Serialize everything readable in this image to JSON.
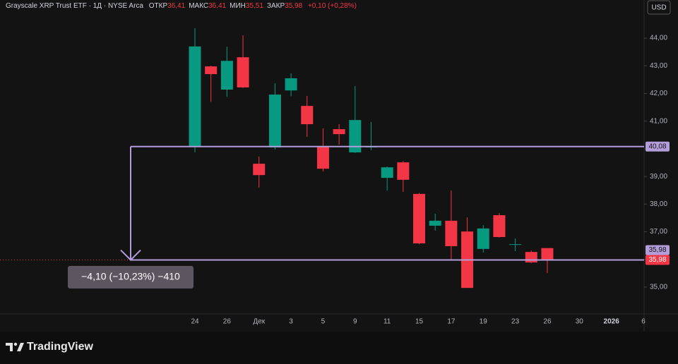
{
  "chart_data": {
    "type": "candlestick",
    "title": "Grayscale XRP Trust ETF · 1Д · NYSE Arca",
    "ohlc_legend": [
      {
        "name": "ОТКР",
        "value": "36,41"
      },
      {
        "name": "МАКС",
        "value": "36,41"
      },
      {
        "name": "МИН",
        "value": "35,51"
      },
      {
        "name": "ЗАКР",
        "value": "35,98"
      }
    ],
    "change": "+0,10 (+0,28%)",
    "currency": "USD",
    "categories": [
      "24",
      null,
      "26",
      null,
      "Дек",
      null,
      "3",
      null,
      "5",
      null,
      "9",
      null,
      "11",
      null,
      "15",
      null,
      "17",
      null,
      "19",
      null,
      "23",
      null,
      "26",
      null,
      "30",
      null,
      "2026",
      null,
      "6"
    ],
    "open": [
      40.08,
      42.98,
      42.14,
      43.31,
      39.46,
      40.05,
      42.11,
      41.55,
      40.1,
      40.71,
      39.87,
      40.05,
      38.95,
      39.51,
      38.37,
      37.22,
      37.4,
      37.01,
      36.38,
      37.6,
      36.53,
      36.27,
      36.41,
      null,
      null,
      null,
      null,
      null,
      null
    ],
    "high": [
      44.36,
      43.0,
      43.69,
      44.1,
      39.72,
      42.37,
      42.73,
      41.91,
      40.74,
      40.89,
      42.27,
      40.97,
      39.36,
      39.56,
      38.4,
      37.65,
      38.49,
      37.52,
      37.24,
      37.68,
      36.76,
      36.32,
      36.41,
      null,
      null,
      null,
      null,
      null,
      null
    ],
    "low": [
      39.87,
      41.7,
      41.88,
      42.2,
      38.6,
      39.97,
      41.9,
      40.43,
      39.18,
      40.15,
      39.85,
      39.95,
      38.49,
      38.44,
      36.55,
      37.04,
      35.99,
      34.97,
      36.25,
      36.79,
      36.3,
      35.87,
      35.51,
      null,
      null,
      null,
      null,
      null,
      null
    ],
    "close": [
      43.7,
      42.7,
      43.18,
      42.22,
      39.05,
      41.96,
      42.55,
      40.89,
      39.28,
      40.53,
      41.04,
      40.08,
      39.33,
      38.88,
      36.58,
      37.4,
      36.48,
      34.97,
      37.12,
      36.81,
      36.55,
      35.89,
      35.98,
      null,
      null,
      null,
      null,
      null,
      null
    ],
    "up_color": "#089981",
    "down_color": "#f23645",
    "ylim": [
      34.03,
      45.38
    ],
    "yticks": [
      {
        "value": 35,
        "label": "35,00"
      },
      {
        "value": 36,
        "label": "36,00"
      },
      {
        "value": 37,
        "label": "37,00"
      },
      {
        "value": 38,
        "label": "38,00"
      },
      {
        "value": 39,
        "label": "39,00"
      },
      {
        "value": 40,
        "label": "40,00"
      },
      {
        "value": 41,
        "label": "41,00"
      },
      {
        "value": 42,
        "label": "42,00"
      },
      {
        "value": 43,
        "label": "43,00"
      },
      {
        "value": 44,
        "label": "44,00"
      }
    ],
    "line_color": "#b39ddb",
    "price_lines": [
      {
        "value": 40.08,
        "label": "40,08"
      },
      {
        "value": 35.98,
        "label": "35,98"
      }
    ],
    "last_price": {
      "value": 35.98,
      "label": "35,98"
    },
    "measure_label": "−4,10 (−10,23%) −410"
  },
  "brand": "TradingView"
}
